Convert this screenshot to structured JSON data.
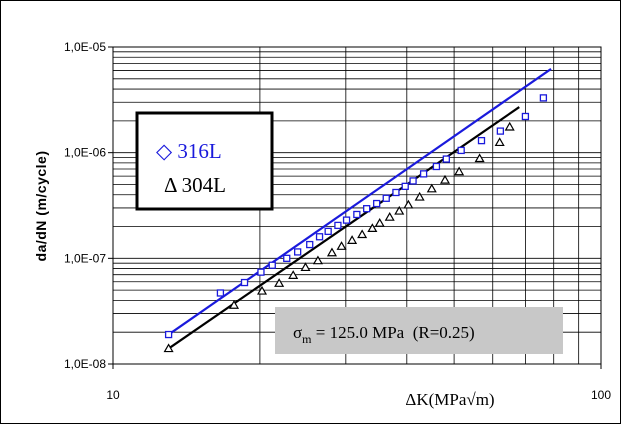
{
  "chart_data": {
    "type": "scatter",
    "xscale": "log",
    "yscale": "log",
    "xlim": [
      10,
      100
    ],
    "ylim": [
      1e-08,
      1e-05
    ],
    "grid": true,
    "xlabel": "ΔK(MPa√m)",
    "ylabel": "da/dN (m/cycle)",
    "x_tick_labels": [
      "10",
      "100"
    ],
    "y_tick_labels": [
      "1,0E-08",
      "1,0E-07",
      "1,0E-06",
      "1,0E-05"
    ],
    "legend": {
      "placement": "upper-left",
      "entries": [
        "◇ 316L",
        "Δ 304L"
      ]
    },
    "annotation": {
      "prefix": "σ",
      "subscript": "m",
      "text": " = 125.0 MPa  (R=0.25)"
    },
    "series": [
      {
        "name": "316L",
        "color": "#1a1adc",
        "marker": "square",
        "x": [
          13.0,
          16.6,
          18.6,
          20.1,
          21.2,
          22.7,
          23.9,
          25.3,
          26.5,
          27.6,
          28.9,
          30.1,
          31.6,
          33.1,
          34.7,
          36.3,
          38.0,
          39.7,
          41.2,
          43.3,
          46.0,
          48.2,
          51.7,
          56.9,
          62.2,
          70.0,
          76.2
        ],
        "y": [
          1.9e-08,
          4.7e-08,
          5.9e-08,
          7.4e-08,
          8.6e-08,
          1e-07,
          1.15e-07,
          1.35e-07,
          1.6e-07,
          1.8e-07,
          2.05e-07,
          2.3e-07,
          2.6e-07,
          2.95e-07,
          3.3e-07,
          3.7e-07,
          4.2e-07,
          4.8e-07,
          5.4e-07,
          6.3e-07,
          7.4e-07,
          8.7e-07,
          1.05e-06,
          1.3e-06,
          1.6e-06,
          2.2e-06,
          3.3e-06
        ]
      },
      {
        "name": "304L",
        "color": "#000000",
        "marker": "triangle",
        "x": [
          13.0,
          17.7,
          20.2,
          21.9,
          23.4,
          24.8,
          26.3,
          28.1,
          29.4,
          30.9,
          32.4,
          34.0,
          35.2,
          36.9,
          38.6,
          40.3,
          42.5,
          45.0,
          47.9,
          51.2,
          56.4,
          62.0,
          65.0
        ],
        "y": [
          1.4e-08,
          3.6e-08,
          4.9e-08,
          5.8e-08,
          6.9e-08,
          8.2e-08,
          9.5e-08,
          1.13e-07,
          1.3e-07,
          1.48e-07,
          1.68e-07,
          1.92e-07,
          2.15e-07,
          2.45e-07,
          2.8e-07,
          3.2e-07,
          3.8e-07,
          4.55e-07,
          5.5e-07,
          6.6e-07,
          8.8e-07,
          1.25e-06,
          1.75e-06
        ]
      }
    ],
    "fits": [
      {
        "series": "316L",
        "x": [
          13.0,
          79.0
        ],
        "y": [
          1.9e-08,
          6.2e-06
        ]
      },
      {
        "series": "304L",
        "x": [
          13.0,
          68.0
        ],
        "y": [
          1.4e-08,
          2.7e-06
        ]
      }
    ]
  }
}
